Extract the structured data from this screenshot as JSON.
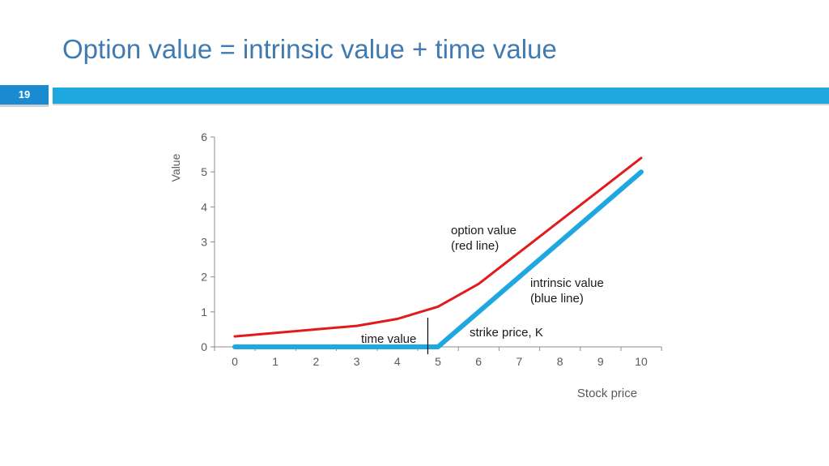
{
  "slide": {
    "title": "Option value = intrinsic value + time value",
    "number": "19"
  },
  "colors": {
    "title": "#3f7bb1",
    "accent_bar": "#1fa7e0",
    "number_box": "#1a8bd0",
    "option_line": "#e31a1c",
    "intrinsic_line": "#1fa7e0"
  },
  "chart_data": {
    "type": "line",
    "xlabel": "Stock price",
    "ylabel": "Value",
    "xlim": [
      0,
      10
    ],
    "ylim": [
      0,
      6
    ],
    "xticks": [
      "0",
      "1",
      "2",
      "3",
      "4",
      "5",
      "6",
      "7",
      "8",
      "9",
      "10"
    ],
    "yticks": [
      "0",
      "1",
      "2",
      "3",
      "4",
      "5",
      "6"
    ],
    "grid": false,
    "legend": "none",
    "series": [
      {
        "key": "option",
        "x": [
          0,
          1,
          2,
          3,
          4,
          5,
          6,
          7,
          8,
          9,
          10
        ],
        "y": [
          0.3,
          0.4,
          0.5,
          0.6,
          0.8,
          1.15,
          1.8,
          2.7,
          3.6,
          4.5,
          5.4
        ]
      },
      {
        "key": "intrinsic",
        "x": [
          0,
          5,
          10
        ],
        "y": [
          0,
          0,
          5
        ]
      }
    ],
    "annotations": {
      "option_label": [
        "option value",
        "(red line)"
      ],
      "intrinsic_label": [
        "intrinsic value",
        "(blue line)"
      ],
      "strike_label": "strike price, K",
      "time_value_label": "time value",
      "time_value_marker_x": 4.75,
      "strike_x": 5
    }
  }
}
